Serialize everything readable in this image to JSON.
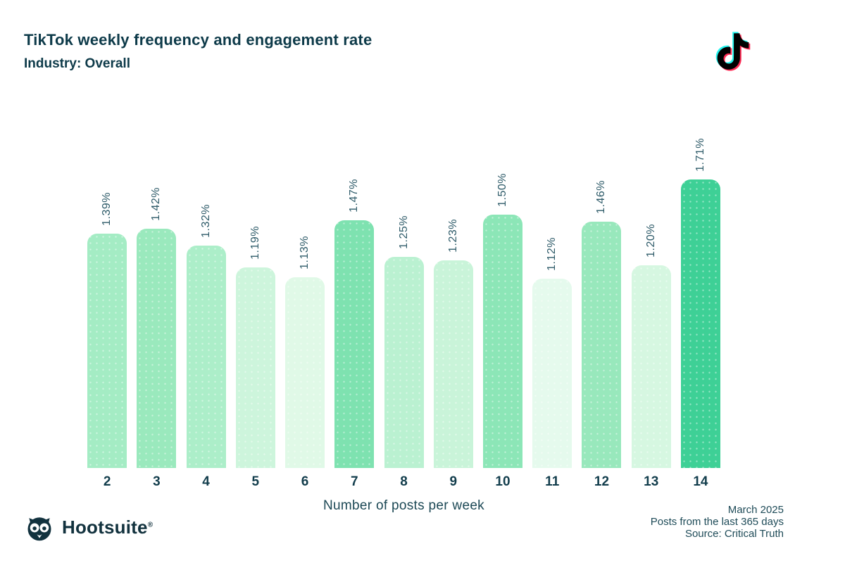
{
  "header": {
    "title": "TikTok weekly frequency and engagement rate",
    "subtitle": "Industry: Overall"
  },
  "chart_data": {
    "type": "bar",
    "title": "TikTok weekly frequency and engagement rate",
    "subtitle": "Industry: Overall",
    "categories": [
      2,
      3,
      4,
      5,
      6,
      7,
      8,
      9,
      10,
      11,
      12,
      13,
      14
    ],
    "values": [
      1.39,
      1.42,
      1.32,
      1.19,
      1.13,
      1.47,
      1.25,
      1.23,
      1.5,
      1.12,
      1.46,
      1.2,
      1.71
    ],
    "labels": [
      "1.39%",
      "1.42%",
      "1.32%",
      "1.19%",
      "1.13%",
      "1.47%",
      "1.25%",
      "1.23%",
      "1.50%",
      "1.12%",
      "1.46%",
      "1.20%",
      "1.71%"
    ],
    "bar_colors": [
      "#a4ecc4",
      "#9ae9bd",
      "#aceec9",
      "#cdf5dc",
      "#e0f9e7",
      "#7ee2b0",
      "#baf1d1",
      "#c9f4d9",
      "#8ce6b7",
      "#e5faed",
      "#98e8bc",
      "#d6f7e1",
      "#3ed096"
    ],
    "xlabel": "Number of posts per week",
    "ylabel": "",
    "ylim": [
      0,
      1.75
    ],
    "grid": false,
    "legend": "none",
    "value_labels_rotation": 90
  },
  "logos": {
    "tiktok": {
      "name": "tiktok-logo",
      "cyan": "#25f4ee",
      "pink": "#fe2c55",
      "black": "#010101"
    },
    "hootsuite": {
      "brand": "Hootsuite",
      "registered": "®",
      "color": "#12323e"
    }
  },
  "footer": {
    "meta_line1": "March 2025",
    "meta_line2": "Posts from the last 365 days",
    "meta_line3": "Source: Critical Truth"
  }
}
